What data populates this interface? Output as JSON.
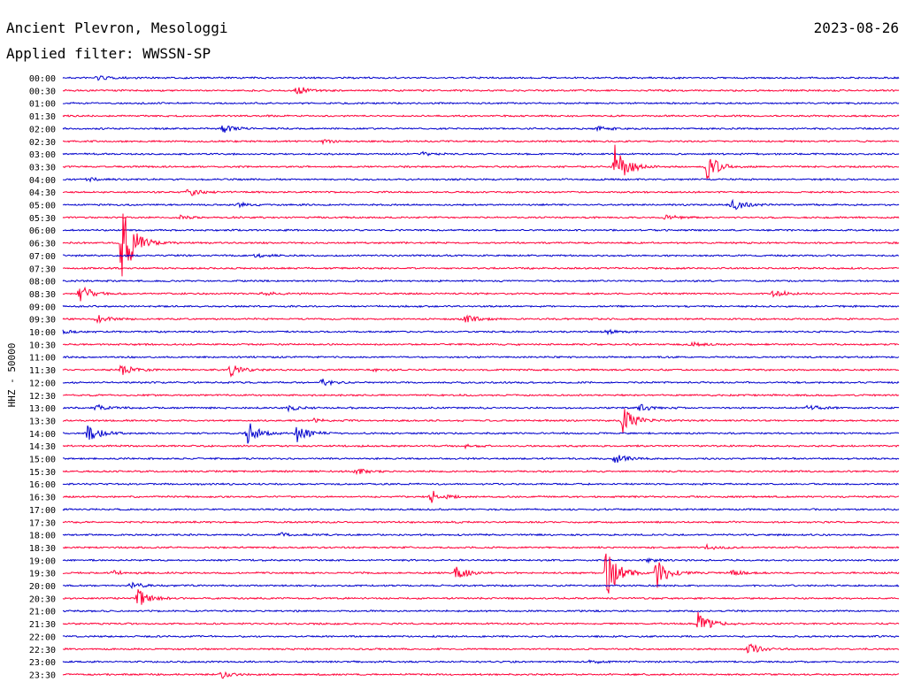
{
  "header": {
    "station": "Ancient Plevron, Mesologgi",
    "filter": "Applied filter: WWSSN-SP",
    "date": "2023-08-26"
  },
  "chart_data": {
    "type": "line",
    "ylabel": "HHZ - 50000",
    "colors": [
      "#0000cc",
      "#ff0038"
    ],
    "rows": [
      {
        "time": "00:00",
        "events": [
          {
            "x": 0.04,
            "a": 3
          }
        ]
      },
      {
        "time": "00:30",
        "events": [
          {
            "x": 0.28,
            "a": 5
          }
        ]
      },
      {
        "time": "01:00",
        "events": []
      },
      {
        "time": "01:30",
        "events": []
      },
      {
        "time": "02:00",
        "events": [
          {
            "x": 0.19,
            "a": 5
          },
          {
            "x": 0.64,
            "a": 2
          }
        ]
      },
      {
        "time": "02:30",
        "events": [
          {
            "x": 0.31,
            "a": 2
          }
        ]
      },
      {
        "time": "03:00",
        "events": [
          {
            "x": 0.43,
            "a": 2
          }
        ]
      },
      {
        "time": "03:30",
        "events": [
          {
            "x": 0.66,
            "a": 28
          },
          {
            "x": 0.77,
            "a": 16
          }
        ]
      },
      {
        "time": "04:00",
        "events": [
          {
            "x": 0.03,
            "a": 2
          }
        ]
      },
      {
        "time": "04:30",
        "events": [
          {
            "x": 0.15,
            "a": 5
          }
        ]
      },
      {
        "time": "05:00",
        "events": [
          {
            "x": 0.8,
            "a": 9
          },
          {
            "x": 0.21,
            "a": 2
          }
        ]
      },
      {
        "time": "05:30",
        "events": [
          {
            "x": 0.72,
            "a": 3
          },
          {
            "x": 0.14,
            "a": 2
          }
        ]
      },
      {
        "time": "06:00",
        "events": []
      },
      {
        "time": "06:30",
        "events": [
          {
            "x": 0.07,
            "a": 50
          }
        ]
      },
      {
        "time": "07:00",
        "events": [
          {
            "x": 0.23,
            "a": 2
          }
        ]
      },
      {
        "time": "07:30",
        "events": []
      },
      {
        "time": "08:00",
        "events": []
      },
      {
        "time": "08:30",
        "events": [
          {
            "x": 0.02,
            "a": 10
          },
          {
            "x": 0.85,
            "a": 5
          },
          {
            "x": 0.24,
            "a": 2
          }
        ]
      },
      {
        "time": "09:00",
        "events": []
      },
      {
        "time": "09:30",
        "events": [
          {
            "x": 0.04,
            "a": 5
          },
          {
            "x": 0.48,
            "a": 6
          }
        ]
      },
      {
        "time": "10:00",
        "events": [
          {
            "x": 0.0,
            "a": 2
          },
          {
            "x": 0.65,
            "a": 2
          }
        ]
      },
      {
        "time": "10:30",
        "events": [
          {
            "x": 0.75,
            "a": 3
          }
        ]
      },
      {
        "time": "11:00",
        "events": []
      },
      {
        "time": "11:30",
        "events": [
          {
            "x": 0.07,
            "a": 6
          },
          {
            "x": 0.2,
            "a": 7
          },
          {
            "x": 0.37,
            "a": 2
          }
        ]
      },
      {
        "time": "12:00",
        "events": [
          {
            "x": 0.31,
            "a": 4
          }
        ]
      },
      {
        "time": "12:30",
        "events": []
      },
      {
        "time": "13:00",
        "events": [
          {
            "x": 0.04,
            "a": 4
          },
          {
            "x": 0.27,
            "a": 3
          },
          {
            "x": 0.69,
            "a": 4
          },
          {
            "x": 0.89,
            "a": 4
          }
        ]
      },
      {
        "time": "13:30",
        "events": [
          {
            "x": 0.67,
            "a": 16
          },
          {
            "x": 0.3,
            "a": 2
          }
        ]
      },
      {
        "time": "14:00",
        "events": [
          {
            "x": 0.03,
            "a": 10
          },
          {
            "x": 0.22,
            "a": 15
          },
          {
            "x": 0.28,
            "a": 11
          }
        ]
      },
      {
        "time": "14:30",
        "events": [
          {
            "x": 0.48,
            "a": 2
          }
        ]
      },
      {
        "time": "15:00",
        "events": [
          {
            "x": 0.66,
            "a": 6
          }
        ]
      },
      {
        "time": "15:30",
        "events": [
          {
            "x": 0.35,
            "a": 4
          }
        ]
      },
      {
        "time": "16:00",
        "events": []
      },
      {
        "time": "16:30",
        "events": [
          {
            "x": 0.44,
            "a": 8
          }
        ]
      },
      {
        "time": "17:00",
        "events": []
      },
      {
        "time": "17:30",
        "events": []
      },
      {
        "time": "18:00",
        "events": [
          {
            "x": 0.26,
            "a": 2
          }
        ]
      },
      {
        "time": "18:30",
        "events": [
          {
            "x": 0.77,
            "a": 3
          }
        ]
      },
      {
        "time": "19:00",
        "events": [
          {
            "x": 0.7,
            "a": 2
          }
        ]
      },
      {
        "time": "19:30",
        "events": [
          {
            "x": 0.65,
            "a": 30
          },
          {
            "x": 0.71,
            "a": 18
          },
          {
            "x": 0.47,
            "a": 8
          },
          {
            "x": 0.06,
            "a": 3
          },
          {
            "x": 0.8,
            "a": 3
          }
        ]
      },
      {
        "time": "20:00",
        "events": [
          {
            "x": 0.08,
            "a": 4
          }
        ]
      },
      {
        "time": "20:30",
        "events": [
          {
            "x": 0.09,
            "a": 12
          }
        ]
      },
      {
        "time": "21:00",
        "events": []
      },
      {
        "time": "21:30",
        "events": [
          {
            "x": 0.76,
            "a": 14
          }
        ]
      },
      {
        "time": "22:00",
        "events": []
      },
      {
        "time": "22:30",
        "events": [
          {
            "x": 0.82,
            "a": 7
          }
        ]
      },
      {
        "time": "23:00",
        "events": [
          {
            "x": 0.63,
            "a": 2
          }
        ]
      },
      {
        "time": "23:30",
        "events": [
          {
            "x": 0.19,
            "a": 4
          }
        ]
      }
    ]
  }
}
